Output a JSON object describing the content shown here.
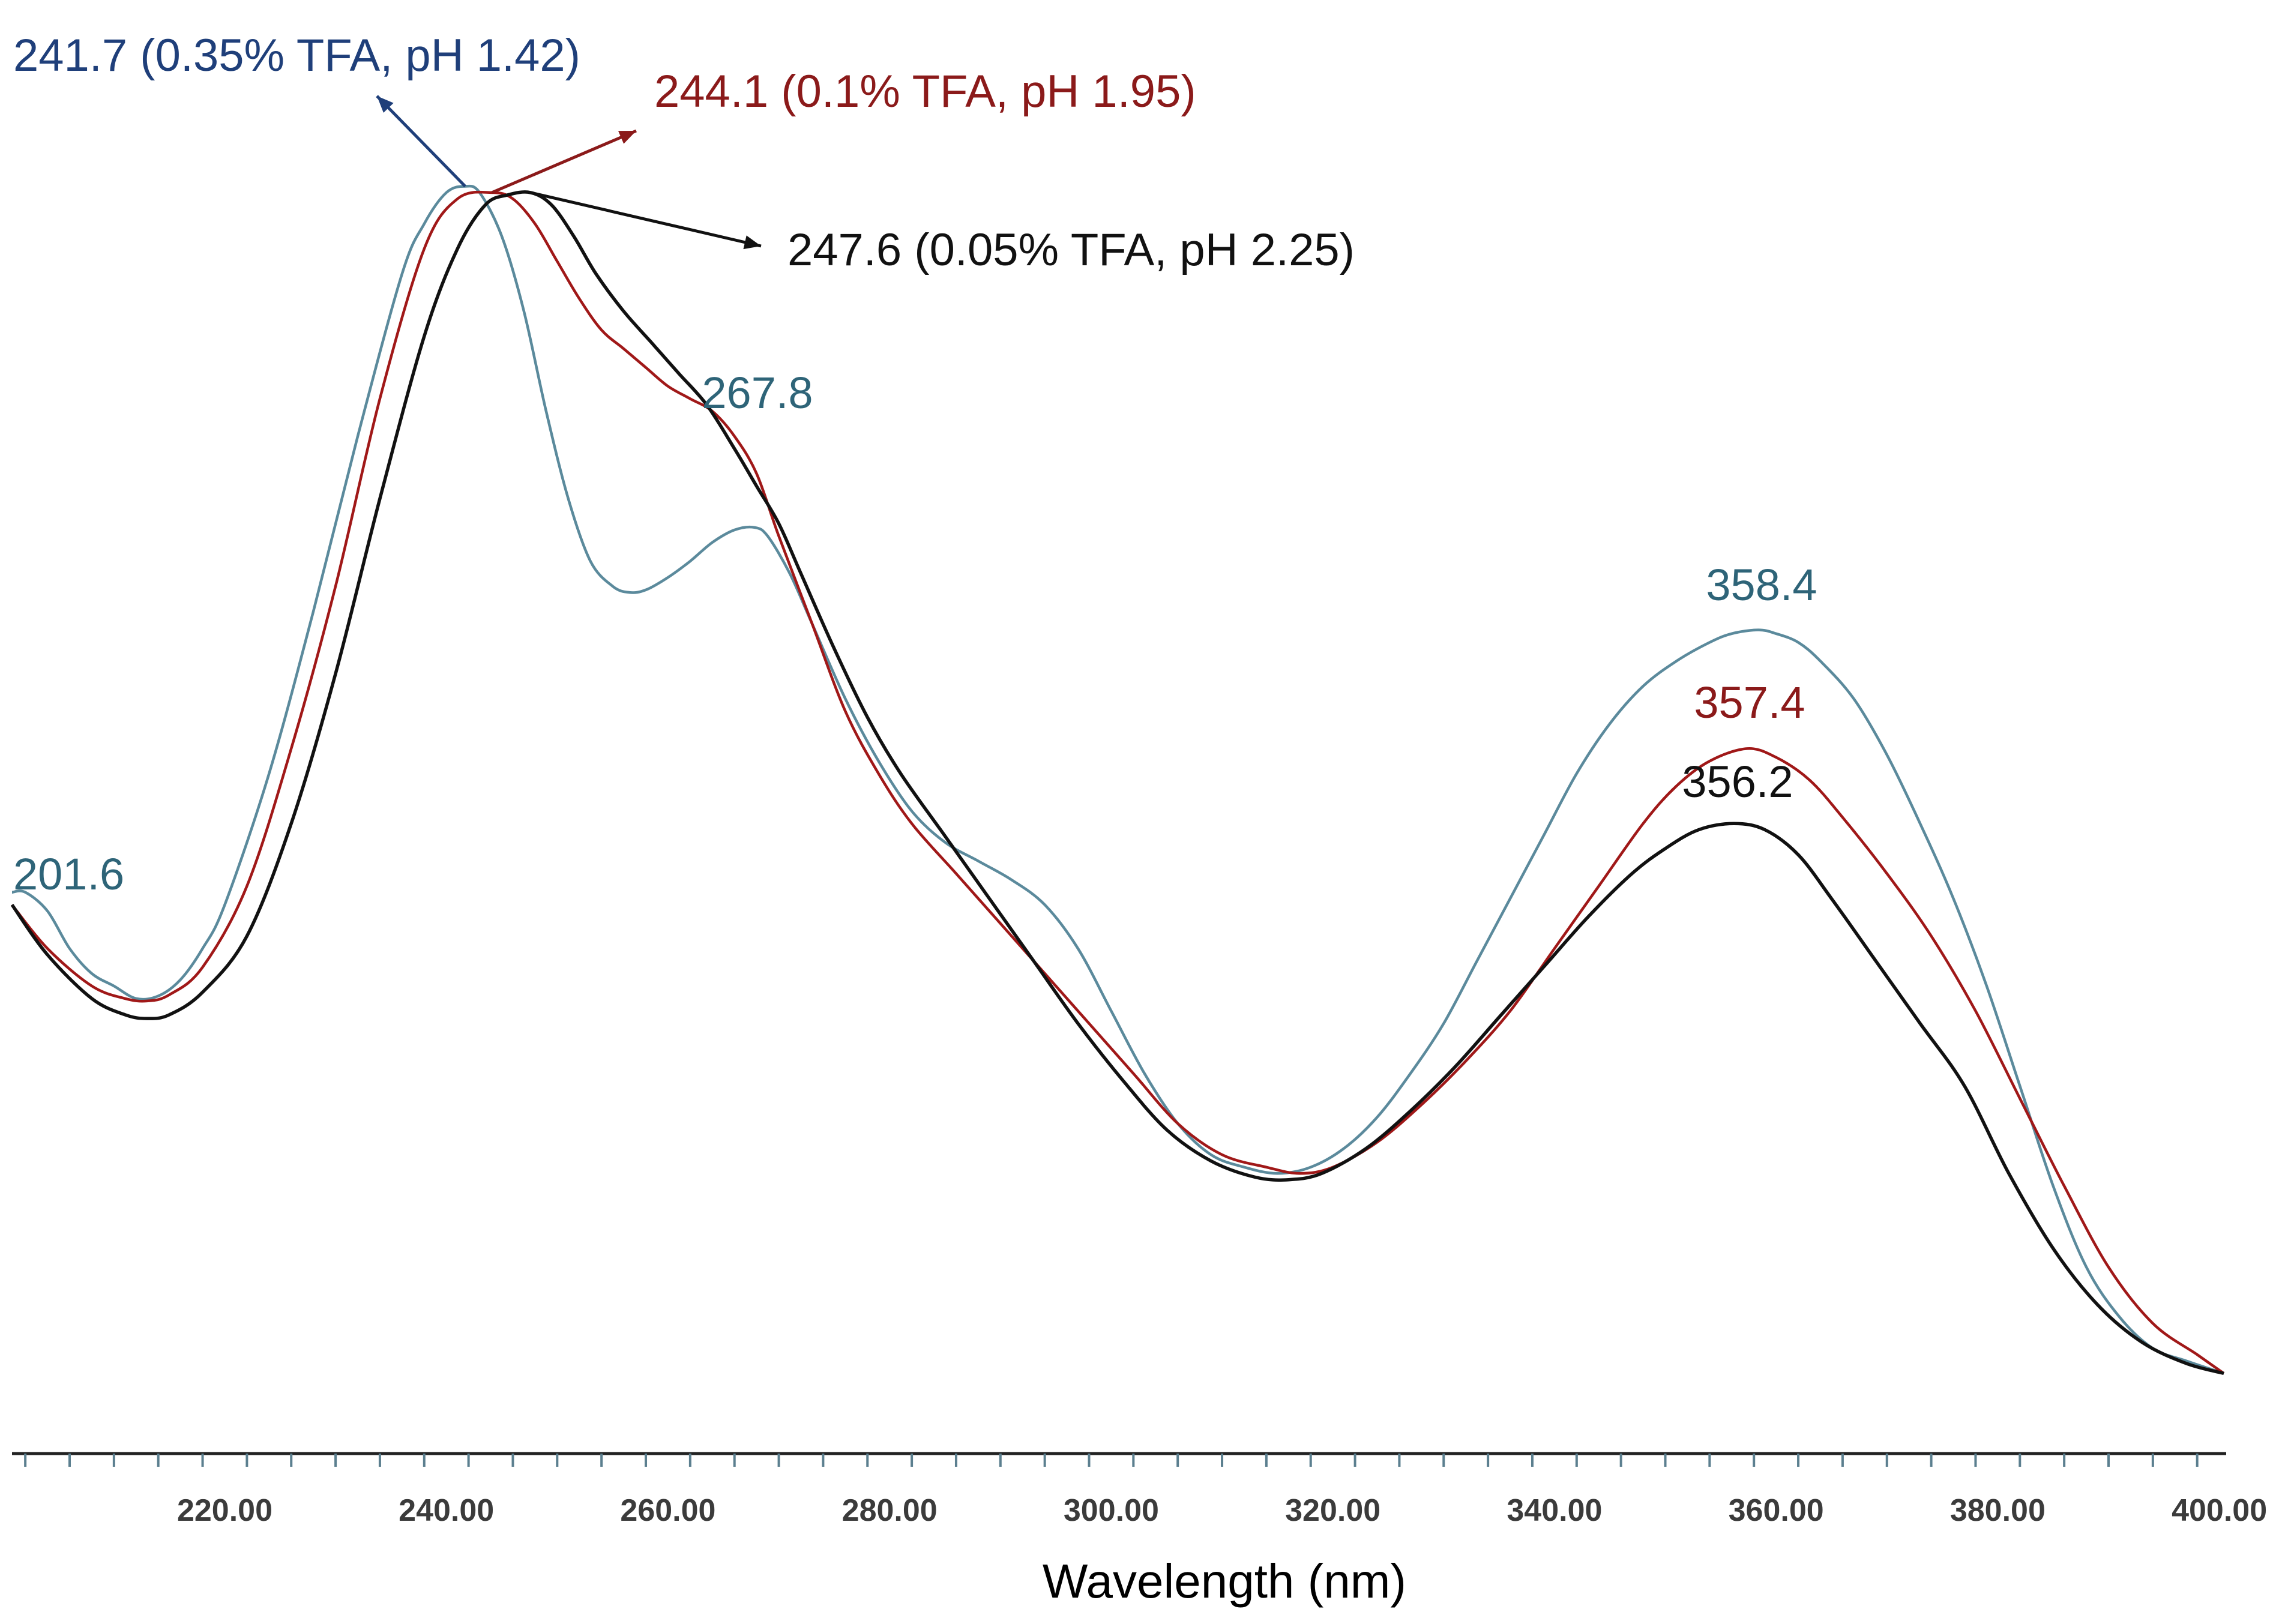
{
  "chart_data": {
    "type": "line",
    "title": "",
    "xlabel": "Wavelength (nm)",
    "ylabel": "",
    "xlim": [
      200.8,
      400.4
    ],
    "ylim": [
      0,
      1
    ],
    "grid": false,
    "x_ticks": [
      "220.00",
      "240.00",
      "260.00",
      "280.00",
      "300.00",
      "320.00",
      "340.00",
      "360.00",
      "380.00",
      "400.00"
    ],
    "series": [
      {
        "color": "#5b8a9c",
        "x": [
          200.8,
          202,
          204,
          206,
          208,
          210,
          212,
          214,
          216,
          218,
          220,
          224,
          228,
          232,
          236,
          238,
          240,
          241.7,
          243,
          245,
          247,
          249,
          251,
          253,
          255,
          256.5,
          258,
          260,
          262,
          264,
          266,
          267.8,
          269,
          271,
          273,
          276,
          279,
          282,
          285,
          288,
          291,
          294,
          297,
          300,
          303,
          306,
          309,
          312,
          315,
          318,
          321,
          324,
          327,
          330,
          333,
          336,
          339,
          342,
          345,
          348,
          351,
          354,
          356,
          358.4,
          360,
          362,
          364,
          367,
          370,
          373,
          376,
          379,
          382,
          385,
          388,
          391,
          394,
          397,
          400.4
        ],
        "y": [
          0.405,
          0.405,
          0.39,
          0.36,
          0.34,
          0.33,
          0.32,
          0.322,
          0.335,
          0.36,
          0.395,
          0.5,
          0.63,
          0.77,
          0.9,
          0.94,
          0.965,
          0.97,
          0.965,
          0.93,
          0.87,
          0.79,
          0.72,
          0.67,
          0.65,
          0.645,
          0.647,
          0.657,
          0.67,
          0.685,
          0.695,
          0.697,
          0.69,
          0.66,
          0.62,
          0.56,
          0.51,
          0.47,
          0.445,
          0.43,
          0.415,
          0.395,
          0.36,
          0.31,
          0.26,
          0.22,
          0.195,
          0.185,
          0.18,
          0.185,
          0.2,
          0.225,
          0.26,
          0.3,
          0.35,
          0.4,
          0.45,
          0.5,
          0.54,
          0.57,
          0.59,
          0.605,
          0.612,
          0.615,
          0.612,
          0.605,
          0.59,
          0.56,
          0.515,
          0.46,
          0.4,
          0.33,
          0.25,
          0.17,
          0.105,
          0.065,
          0.04,
          0.03,
          0.02
        ]
      },
      {
        "color": "#a01818",
        "x": [
          200.8,
          204,
          208,
          211,
          213,
          215,
          218,
          222,
          226,
          230,
          234,
          238,
          241,
          244.1,
          246,
          248,
          250,
          252,
          254,
          256,
          258,
          260,
          262,
          264,
          266,
          268,
          270,
          273,
          276,
          279,
          282,
          286,
          290,
          294,
          298,
          302,
          306,
          310,
          314,
          317,
          320,
          324,
          328,
          332,
          336,
          340,
          344,
          348,
          351,
          354,
          357.4,
          360,
          363,
          366,
          370,
          374,
          378,
          382,
          386,
          390,
          394,
          398,
          400.4
        ],
        "y": [
          0.395,
          0.36,
          0.33,
          0.32,
          0.318,
          0.323,
          0.345,
          0.41,
          0.52,
          0.65,
          0.8,
          0.92,
          0.96,
          0.965,
          0.96,
          0.94,
          0.91,
          0.88,
          0.855,
          0.84,
          0.825,
          0.81,
          0.8,
          0.79,
          0.77,
          0.74,
          0.69,
          0.62,
          0.55,
          0.5,
          0.46,
          0.42,
          0.38,
          0.34,
          0.3,
          0.26,
          0.22,
          0.195,
          0.185,
          0.18,
          0.185,
          0.205,
          0.235,
          0.27,
          0.31,
          0.36,
          0.41,
          0.46,
          0.49,
          0.51,
          0.52,
          0.513,
          0.495,
          0.465,
          0.42,
          0.37,
          0.31,
          0.24,
          0.17,
          0.105,
          0.06,
          0.035,
          0.02
        ]
      },
      {
        "color": "#111111",
        "x": [
          200.8,
          204,
          208,
          211,
          213,
          215,
          218,
          222,
          226,
          230,
          234,
          238,
          241,
          243.5,
          245.5,
          247.6,
          249.5,
          251.5,
          253.5,
          256,
          258.5,
          261,
          263.5,
          266,
          268,
          270,
          272,
          275,
          278,
          281,
          285,
          289,
          293,
          297,
          301,
          305,
          309,
          313,
          316,
          319,
          323,
          327,
          331,
          335,
          339,
          343,
          347,
          350,
          353,
          356.2,
          359,
          362,
          365,
          369,
          373,
          377,
          381,
          385,
          389,
          393,
          397,
          400.4
        ],
        "y": [
          0.395,
          0.355,
          0.32,
          0.307,
          0.304,
          0.307,
          0.325,
          0.37,
          0.46,
          0.58,
          0.72,
          0.85,
          0.92,
          0.955,
          0.963,
          0.965,
          0.955,
          0.93,
          0.9,
          0.87,
          0.845,
          0.82,
          0.795,
          0.76,
          0.73,
          0.7,
          0.66,
          0.6,
          0.545,
          0.5,
          0.45,
          0.4,
          0.35,
          0.3,
          0.255,
          0.215,
          0.19,
          0.177,
          0.175,
          0.18,
          0.2,
          0.23,
          0.265,
          0.305,
          0.345,
          0.385,
          0.42,
          0.44,
          0.455,
          0.46,
          0.455,
          0.435,
          0.4,
          0.35,
          0.3,
          0.25,
          0.18,
          0.12,
          0.075,
          0.045,
          0.028,
          0.02
        ]
      }
    ],
    "annotations": [
      {
        "text": "241.7 (0.35% TFA, pH 1.42)",
        "color": "#1f3f7a"
      },
      {
        "text": "244.1 (0.1% TFA, pH 1.95)",
        "color": "#8b1a1a"
      },
      {
        "text": "247.6 (0.05% TFA, pH 2.25)",
        "color": "#111111"
      },
      {
        "text": "267.8",
        "color": "#2e6478"
      },
      {
        "text": "201.6",
        "color": "#2e6478"
      },
      {
        "text": "358.4",
        "color": "#2e6478"
      },
      {
        "text": "357.4",
        "color": "#8b1a1a"
      },
      {
        "text": "356.2",
        "color": "#111111"
      }
    ]
  }
}
